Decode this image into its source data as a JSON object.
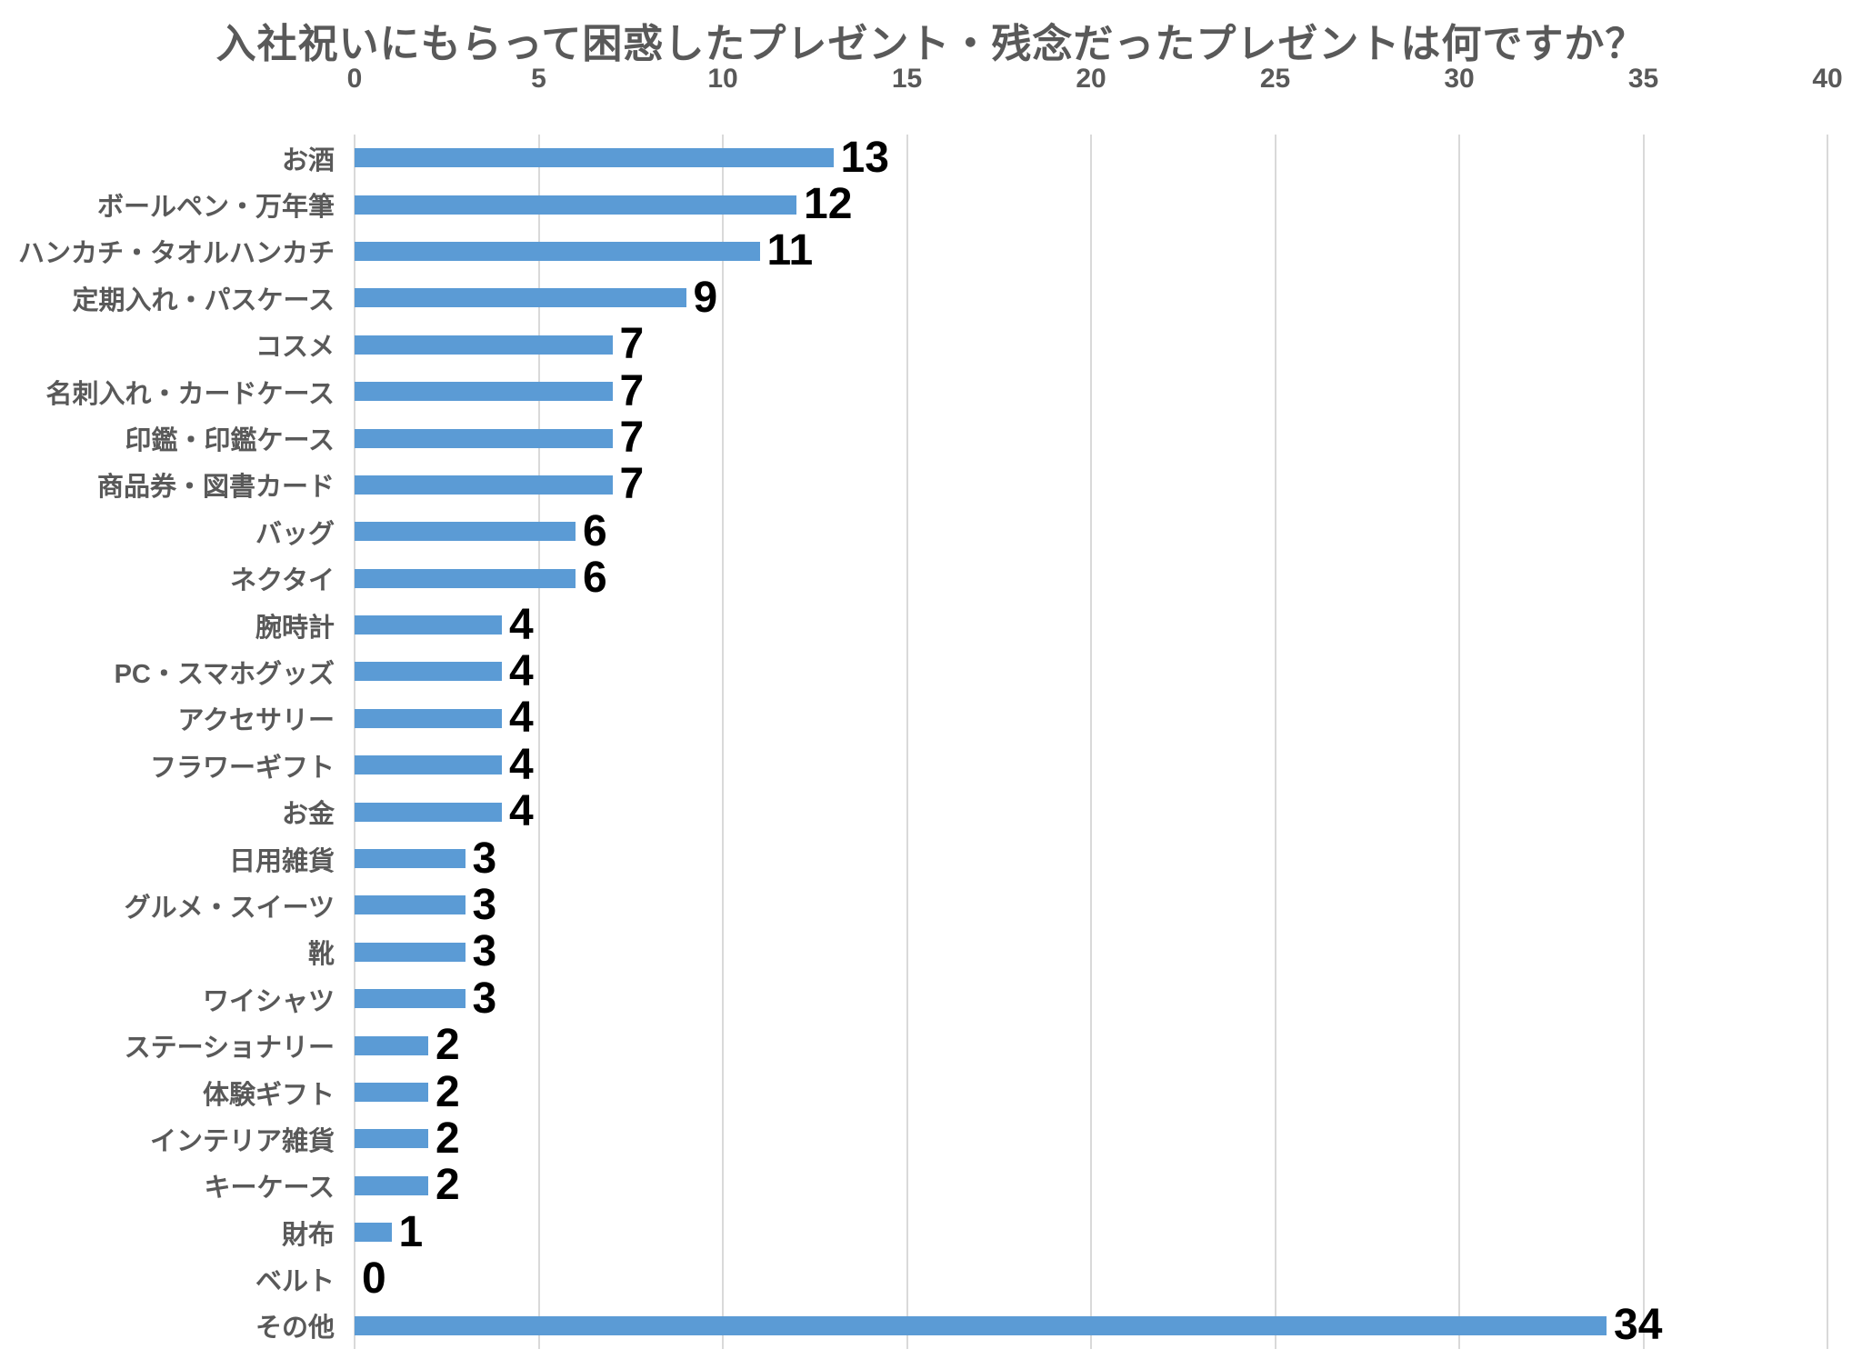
{
  "chart_data": {
    "type": "bar",
    "orientation": "horizontal",
    "title": "入社祝いにもらって困惑したプレゼント・残念だったプレゼントは何ですか？",
    "categories": [
      "お酒",
      "ボールペン・万年筆",
      "ハンカチ・タオルハンカチ",
      "定期入れ・パスケース",
      "コスメ",
      "名刺入れ・カードケース",
      "印鑑・印鑑ケース",
      "商品券・図書カード",
      "バッグ",
      "ネクタイ",
      "腕時計",
      "PC・スマホグッズ",
      "アクセサリー",
      "フラワーギフト",
      "お金",
      "日用雑貨",
      "グルメ・スイーツ",
      "靴",
      "ワイシャツ",
      "ステーショナリー",
      "体験ギフト",
      "インテリア雑貨",
      "キーケース",
      "財布",
      "ベルト",
      "その他"
    ],
    "values": [
      13,
      12,
      11,
      9,
      7,
      7,
      7,
      7,
      6,
      6,
      4,
      4,
      4,
      4,
      4,
      3,
      3,
      3,
      3,
      2,
      2,
      2,
      2,
      1,
      0,
      34
    ],
    "xlabel": "",
    "ylabel": "",
    "xlim": [
      0,
      40
    ],
    "xticks": [
      0,
      5,
      10,
      15,
      20,
      25,
      30,
      35,
      40
    ],
    "grid": "vertical",
    "legend_position": "none",
    "colors": {
      "bar": "#5B9BD5",
      "gridline": "#D9D9D9",
      "axis_label": "#595959",
      "title": "#595959",
      "value_label": "#000000",
      "background": "#FFFFFF"
    }
  }
}
